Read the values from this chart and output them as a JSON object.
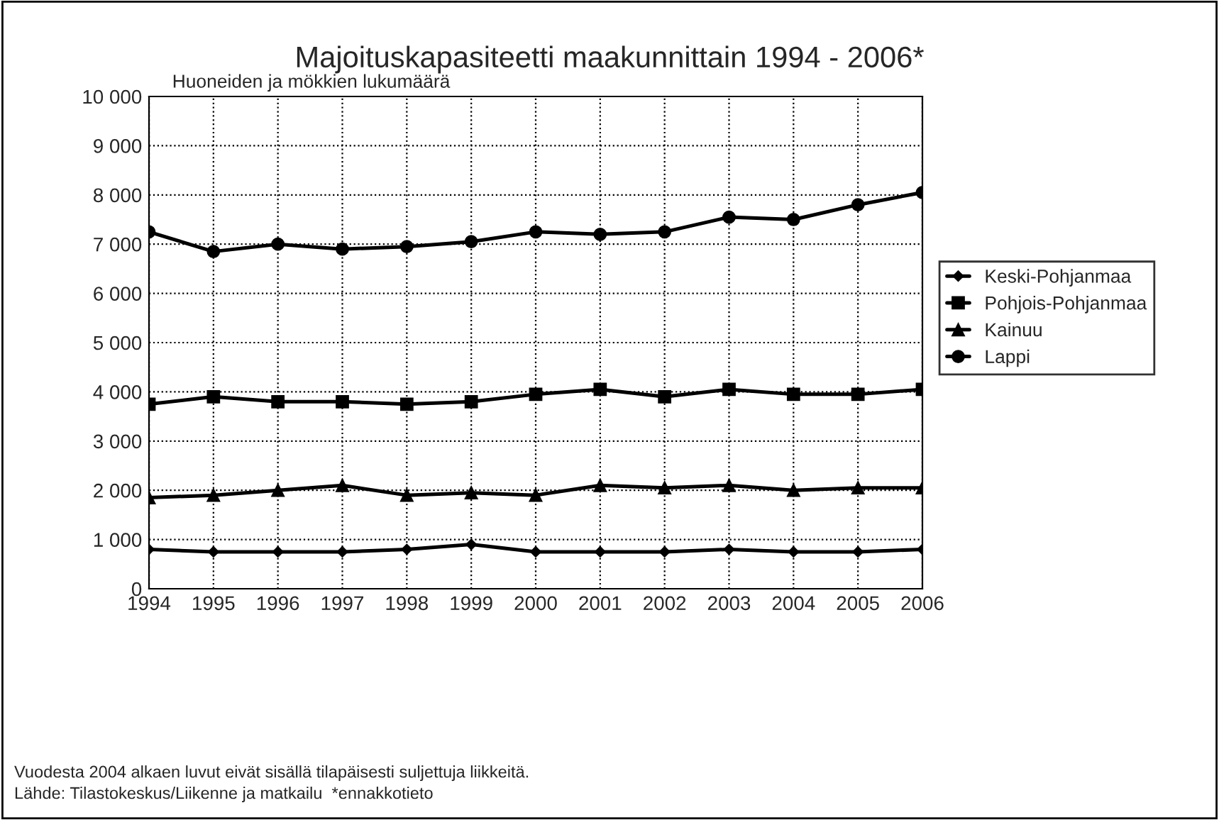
{
  "chart_data": {
    "type": "line",
    "title": "Majoituskapasiteetti maakunnittain 1994 - 2006*",
    "ylabel": "Huoneiden ja mökkien lukumäärä",
    "categories": [
      "1994",
      "1995",
      "1996",
      "1997",
      "1998",
      "1999",
      "2000",
      "2001",
      "2002",
      "2003",
      "2004",
      "2005",
      "2006"
    ],
    "series": [
      {
        "name": "Keski-Pohjanmaa",
        "color": "#000000",
        "marker": "diamond",
        "values": [
          800,
          750,
          750,
          750,
          800,
          900,
          750,
          750,
          750,
          800,
          750,
          750,
          800
        ]
      },
      {
        "name": "Pohjois-Pohjanmaa",
        "color": "#000000",
        "marker": "square",
        "values": [
          3750,
          3900,
          3800,
          3800,
          3750,
          3800,
          3950,
          4050,
          3900,
          4050,
          3950,
          3950,
          4050
        ]
      },
      {
        "name": "Kainuu",
        "color": "#000000",
        "marker": "triangle",
        "values": [
          1850,
          1900,
          2000,
          2100,
          1900,
          1950,
          1900,
          2100,
          2050,
          2100,
          2000,
          2050,
          2050
        ]
      },
      {
        "name": "Lappi",
        "color": "#000000",
        "marker": "circle",
        "values": [
          7250,
          6850,
          7000,
          6900,
          6950,
          7050,
          7250,
          7200,
          7250,
          7550,
          7500,
          7800,
          8050
        ]
      }
    ],
    "ylim": [
      0,
      10000
    ],
    "yticks": [
      0,
      {
        "value": 1000,
        "label": "1 000"
      },
      {
        "value": 2000,
        "label": "2 000"
      },
      {
        "value": 3000,
        "label": "3 000"
      },
      {
        "value": 4000,
        "label": "4 000"
      },
      {
        "value": 5000,
        "label": "5 000"
      },
      {
        "value": 6000,
        "label": "6 000"
      },
      {
        "value": 7000,
        "label": "7 000"
      },
      {
        "value": 8000,
        "label": "8 000"
      },
      {
        "value": 9000,
        "label": "9 000"
      },
      {
        "value": 10000,
        "label": "10 000"
      }
    ],
    "grid": true,
    "legend": "right",
    "line_style": "solid",
    "annotations": [
      "Vuodesta 2004 alkaen luvut eivät sisällä tilapäisesti suljettuja liikkeitä.",
      "Lähde: Tilastokeskus/Liikenne ja matkailu  *ennakkotieto"
    ]
  }
}
